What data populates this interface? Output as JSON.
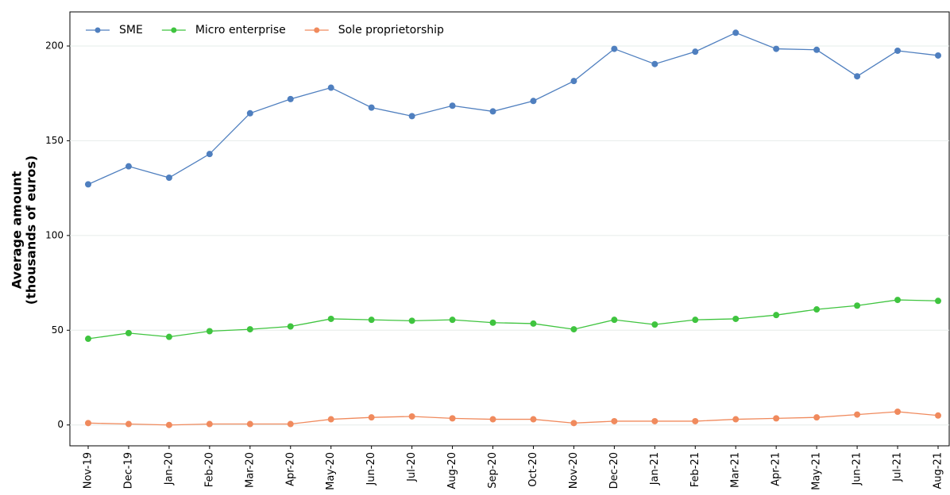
{
  "chart_data": {
    "type": "line",
    "ylabel": [
      "Average amount",
      "(thousands of euros)"
    ],
    "categories": [
      "Nov-19",
      "Dec-19",
      "Jan-20",
      "Feb-20",
      "Mar-20",
      "Apr-20",
      "May-20",
      "Jun-20",
      "Jul-20",
      "Aug-20",
      "Sep-20",
      "Oct-20",
      "Nov-20",
      "Dec-20",
      "Jan-21",
      "Feb-21",
      "Mar-21",
      "Apr-21",
      "May-21",
      "Jun-21",
      "Jul-21",
      "Aug-21"
    ],
    "series": [
      {
        "name": "SME",
        "color": "#4f7fbf",
        "values": [
          127,
          136.5,
          130.5,
          143,
          164.5,
          172,
          178,
          167.5,
          163,
          168.5,
          165.5,
          171,
          181.5,
          198.5,
          190.5,
          197,
          207,
          198.5,
          198,
          184,
          197.5,
          195
        ]
      },
      {
        "name": "Micro enterprise",
        "color": "#3fc43f",
        "values": [
          45.5,
          48.5,
          46.5,
          49.5,
          50.5,
          52,
          56,
          55.5,
          55,
          55.5,
          54,
          53.5,
          50.5,
          55.5,
          53,
          55.5,
          56,
          58,
          61,
          63,
          66,
          65.5
        ]
      },
      {
        "name": "Sole proprietorship",
        "color": "#f08a5d",
        "values": [
          1,
          0.5,
          0,
          0.5,
          0.5,
          0.5,
          3,
          4,
          4.5,
          3.5,
          3,
          3,
          1,
          2,
          2,
          2,
          3,
          3.5,
          4,
          5.5,
          7,
          5
        ]
      }
    ],
    "ylim": [
      -11,
      218
    ],
    "yticks": [
      0,
      50,
      100,
      150,
      200
    ],
    "grid": true,
    "legend": "upper left"
  }
}
